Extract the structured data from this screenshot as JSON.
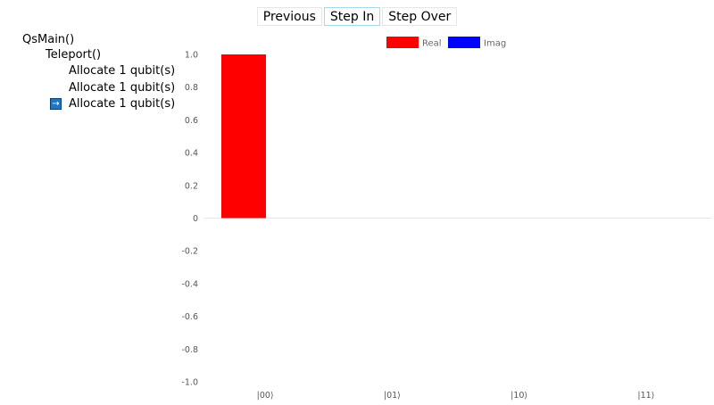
{
  "toolbar": {
    "previous_label": "Previous",
    "step_in_label": "Step In",
    "step_over_label": "Step Over"
  },
  "call_tree": {
    "root": "QsMain()",
    "child": "Teleport()",
    "items": [
      "Allocate 1 qubit(s)",
      "Allocate 1 qubit(s)",
      "Allocate 1 qubit(s)"
    ],
    "current_icon": "right-arrow-icon"
  },
  "chart_data": {
    "type": "bar",
    "categories": [
      "|00⟩",
      "|01⟩",
      "|10⟩",
      "|11⟩"
    ],
    "series": [
      {
        "name": "Real",
        "values": [
          1.0,
          0,
          0,
          0
        ],
        "color": "#ff0000"
      },
      {
        "name": "Imag",
        "values": [
          0,
          0,
          0,
          0
        ],
        "color": "#0000ff"
      }
    ],
    "ylim": [
      -1.0,
      1.0
    ],
    "yticks": [
      "1.0",
      "0.8",
      "0.6",
      "0.4",
      "0.2",
      "0",
      "-0.2",
      "-0.4",
      "-0.6",
      "-0.8",
      "-1.0"
    ],
    "legend_position": "top-center",
    "grid": false
  }
}
